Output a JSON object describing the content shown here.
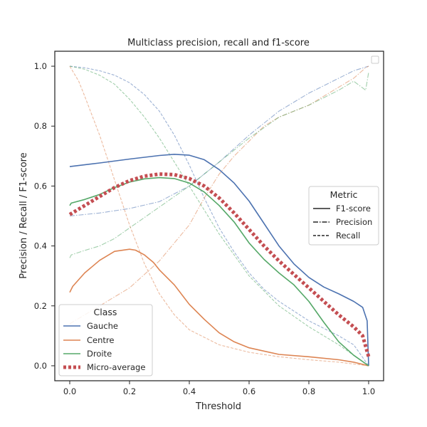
{
  "chart_data": {
    "type": "line",
    "title": "Multiclass precision, recall and f1-score",
    "xlabel": "Threshold",
    "ylabel": "Precision / Recall / F1-score",
    "xlim": [
      -0.05,
      1.05
    ],
    "ylim": [
      -0.05,
      1.05
    ],
    "xticks": [
      0.0,
      0.2,
      0.4,
      0.6,
      0.8,
      1.0
    ],
    "xtick_labels": [
      "0.0",
      "0.2",
      "0.4",
      "0.6",
      "0.8",
      "1.0"
    ],
    "yticks": [
      0.0,
      0.2,
      0.4,
      0.6,
      0.8,
      1.0
    ],
    "ytick_labels": [
      "0.0",
      "0.2",
      "0.4",
      "0.6",
      "0.8",
      "1.0"
    ],
    "grid": false,
    "legend_class": {
      "title": "Class",
      "placement": "lower-left",
      "entries": [
        "Gauche",
        "Centre",
        "Droite",
        "Micro-average"
      ]
    },
    "legend_metric": {
      "title": "Metric",
      "placement": "center-right",
      "entries": [
        "F1-score",
        "Precision",
        "Recall"
      ]
    },
    "colors": {
      "Gauche": "#4c72b0",
      "Centre": "#dd8452",
      "Droite": "#55a868",
      "Micro-average": "#c44e52"
    },
    "series": [
      {
        "class": "Gauche",
        "metric": "F1-score",
        "x": [
          0.0,
          0.1,
          0.2,
          0.3,
          0.35,
          0.4,
          0.45,
          0.5,
          0.55,
          0.6,
          0.65,
          0.7,
          0.75,
          0.8,
          0.85,
          0.9,
          0.95,
          0.98,
          0.995,
          1.0
        ],
        "y": [
          0.665,
          0.677,
          0.69,
          0.702,
          0.706,
          0.703,
          0.688,
          0.655,
          0.61,
          0.55,
          0.475,
          0.4,
          0.34,
          0.295,
          0.263,
          0.24,
          0.215,
          0.195,
          0.15,
          0.0
        ]
      },
      {
        "class": "Gauche",
        "metric": "Precision",
        "x": [
          0.0,
          0.1,
          0.2,
          0.3,
          0.4,
          0.5,
          0.6,
          0.7,
          0.8,
          0.9,
          0.95,
          1.0
        ],
        "y": [
          0.5,
          0.51,
          0.525,
          0.548,
          0.6,
          0.68,
          0.77,
          0.85,
          0.91,
          0.96,
          0.985,
          1.0
        ]
      },
      {
        "class": "Gauche",
        "metric": "Recall",
        "x": [
          0.0,
          0.05,
          0.1,
          0.15,
          0.2,
          0.25,
          0.3,
          0.35,
          0.4,
          0.45,
          0.5,
          0.55,
          0.6,
          0.65,
          0.7,
          0.8,
          0.9,
          0.95,
          1.0
        ],
        "y": [
          1.0,
          0.995,
          0.985,
          0.97,
          0.945,
          0.905,
          0.85,
          0.77,
          0.67,
          0.56,
          0.46,
          0.38,
          0.31,
          0.255,
          0.215,
          0.15,
          0.1,
          0.07,
          0.0
        ]
      },
      {
        "class": "Centre",
        "metric": "F1-score",
        "x": [
          0.0,
          0.01,
          0.05,
          0.1,
          0.15,
          0.2,
          0.22,
          0.25,
          0.28,
          0.3,
          0.35,
          0.4,
          0.45,
          0.5,
          0.55,
          0.6,
          0.7,
          0.8,
          0.9,
          0.95,
          1.0
        ],
        "y": [
          0.245,
          0.265,
          0.31,
          0.352,
          0.382,
          0.389,
          0.386,
          0.37,
          0.345,
          0.32,
          0.27,
          0.205,
          0.155,
          0.11,
          0.08,
          0.06,
          0.038,
          0.03,
          0.02,
          0.012,
          0.0
        ]
      },
      {
        "class": "Centre",
        "metric": "Precision",
        "x": [
          0.0,
          0.1,
          0.2,
          0.3,
          0.4,
          0.45,
          0.5,
          0.55,
          0.6,
          0.65,
          0.7,
          0.8,
          0.9,
          0.95,
          0.99,
          1.0
        ],
        "y": [
          0.14,
          0.2,
          0.26,
          0.35,
          0.47,
          0.56,
          0.64,
          0.7,
          0.75,
          0.8,
          0.83,
          0.87,
          0.93,
          0.96,
          0.995,
          1.0
        ]
      },
      {
        "class": "Centre",
        "metric": "Recall",
        "x": [
          0.0,
          0.03,
          0.05,
          0.1,
          0.15,
          0.2,
          0.25,
          0.3,
          0.35,
          0.4,
          0.5,
          0.6,
          0.7,
          0.8,
          0.9,
          1.0
        ],
        "y": [
          1.0,
          0.95,
          0.9,
          0.77,
          0.62,
          0.47,
          0.34,
          0.24,
          0.17,
          0.12,
          0.07,
          0.045,
          0.03,
          0.02,
          0.012,
          0.0
        ]
      },
      {
        "class": "Droite",
        "metric": "F1-score",
        "x": [
          0.0,
          0.005,
          0.05,
          0.1,
          0.15,
          0.2,
          0.25,
          0.3,
          0.35,
          0.4,
          0.45,
          0.5,
          0.55,
          0.6,
          0.65,
          0.7,
          0.75,
          0.8,
          0.85,
          0.9,
          0.95,
          1.0
        ],
        "y": [
          0.535,
          0.543,
          0.555,
          0.572,
          0.595,
          0.613,
          0.624,
          0.628,
          0.625,
          0.61,
          0.58,
          0.535,
          0.48,
          0.41,
          0.355,
          0.31,
          0.27,
          0.215,
          0.145,
          0.08,
          0.035,
          0.0
        ]
      },
      {
        "class": "Droite",
        "metric": "Precision",
        "x": [
          0.0,
          0.005,
          0.05,
          0.1,
          0.15,
          0.2,
          0.3,
          0.4,
          0.5,
          0.6,
          0.7,
          0.8,
          0.9,
          0.95,
          0.99,
          1.0
        ],
        "y": [
          0.36,
          0.37,
          0.385,
          0.4,
          0.425,
          0.46,
          0.53,
          0.6,
          0.68,
          0.76,
          0.83,
          0.87,
          0.92,
          0.95,
          0.92,
          0.98
        ]
      },
      {
        "class": "Droite",
        "metric": "Recall",
        "x": [
          0.0,
          0.05,
          0.1,
          0.15,
          0.2,
          0.25,
          0.3,
          0.35,
          0.4,
          0.45,
          0.5,
          0.55,
          0.6,
          0.7,
          0.8,
          0.9,
          1.0
        ],
        "y": [
          1.0,
          0.99,
          0.97,
          0.94,
          0.89,
          0.83,
          0.76,
          0.68,
          0.6,
          0.52,
          0.44,
          0.37,
          0.3,
          0.2,
          0.13,
          0.07,
          0.0
        ]
      },
      {
        "class": "Micro-average",
        "metric": "F1-score",
        "x": [
          0.0,
          0.05,
          0.1,
          0.15,
          0.2,
          0.25,
          0.3,
          0.35,
          0.4,
          0.45,
          0.5,
          0.55,
          0.6,
          0.65,
          0.7,
          0.75,
          0.8,
          0.85,
          0.9,
          0.95,
          0.98,
          1.0
        ],
        "y": [
          0.505,
          0.535,
          0.565,
          0.595,
          0.618,
          0.633,
          0.64,
          0.638,
          0.625,
          0.6,
          0.56,
          0.51,
          0.455,
          0.4,
          0.35,
          0.305,
          0.26,
          0.215,
          0.17,
          0.13,
          0.1,
          0.03
        ]
      }
    ]
  }
}
